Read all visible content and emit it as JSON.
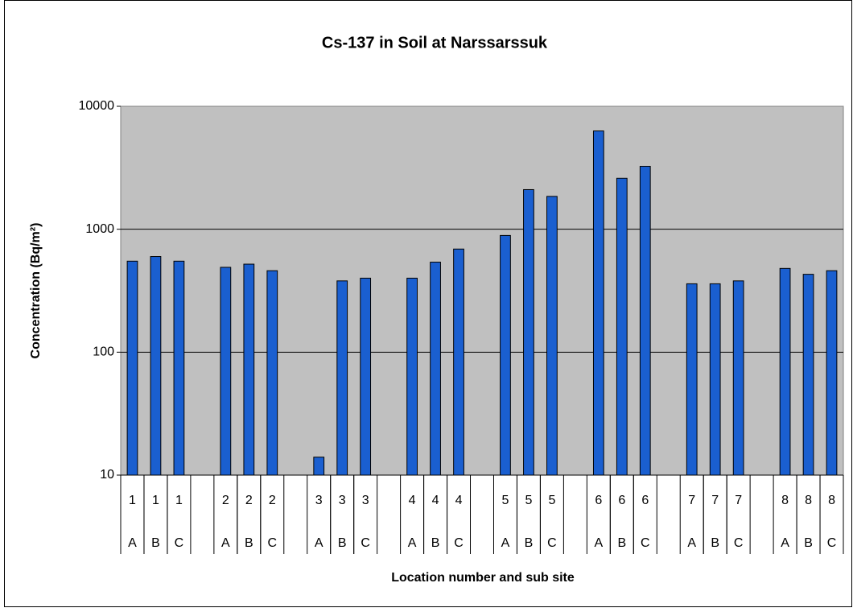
{
  "chart_data": {
    "type": "bar",
    "title": "Cs-137 in Soil at Narssarssuk",
    "x_label": "Location number and sub site",
    "y_label": "Concentration (Bq/m²)",
    "categories": [
      [
        "1",
        "A"
      ],
      [
        "1",
        "B"
      ],
      [
        "1",
        "C"
      ],
      null,
      [
        "2",
        "A"
      ],
      [
        "2",
        "B"
      ],
      [
        "2",
        "C"
      ],
      null,
      [
        "3",
        "A"
      ],
      [
        "3",
        "B"
      ],
      [
        "3",
        "C"
      ],
      null,
      [
        "4",
        "A"
      ],
      [
        "4",
        "B"
      ],
      [
        "4",
        "C"
      ],
      null,
      [
        "5",
        "A"
      ],
      [
        "5",
        "B"
      ],
      [
        "5",
        "C"
      ],
      null,
      [
        "6",
        "A"
      ],
      [
        "6",
        "B"
      ],
      [
        "6",
        "C"
      ],
      null,
      [
        "7",
        "A"
      ],
      [
        "7",
        "B"
      ],
      [
        "7",
        "C"
      ],
      null,
      [
        "8",
        "A"
      ],
      [
        "8",
        "B"
      ],
      [
        "8",
        "C"
      ]
    ],
    "values": [
      550,
      600,
      550,
      null,
      490,
      520,
      460,
      null,
      14,
      380,
      400,
      null,
      400,
      540,
      690,
      null,
      890,
      2100,
      1850,
      null,
      6300,
      2600,
      3250,
      null,
      360,
      360,
      380,
      null,
      480,
      430,
      460
    ],
    "color": "#1a5fd0",
    "log_y": true,
    "ylim": [
      10,
      10000
    ],
    "yticks": [
      10,
      100,
      1000,
      10000
    ],
    "grid": true
  }
}
